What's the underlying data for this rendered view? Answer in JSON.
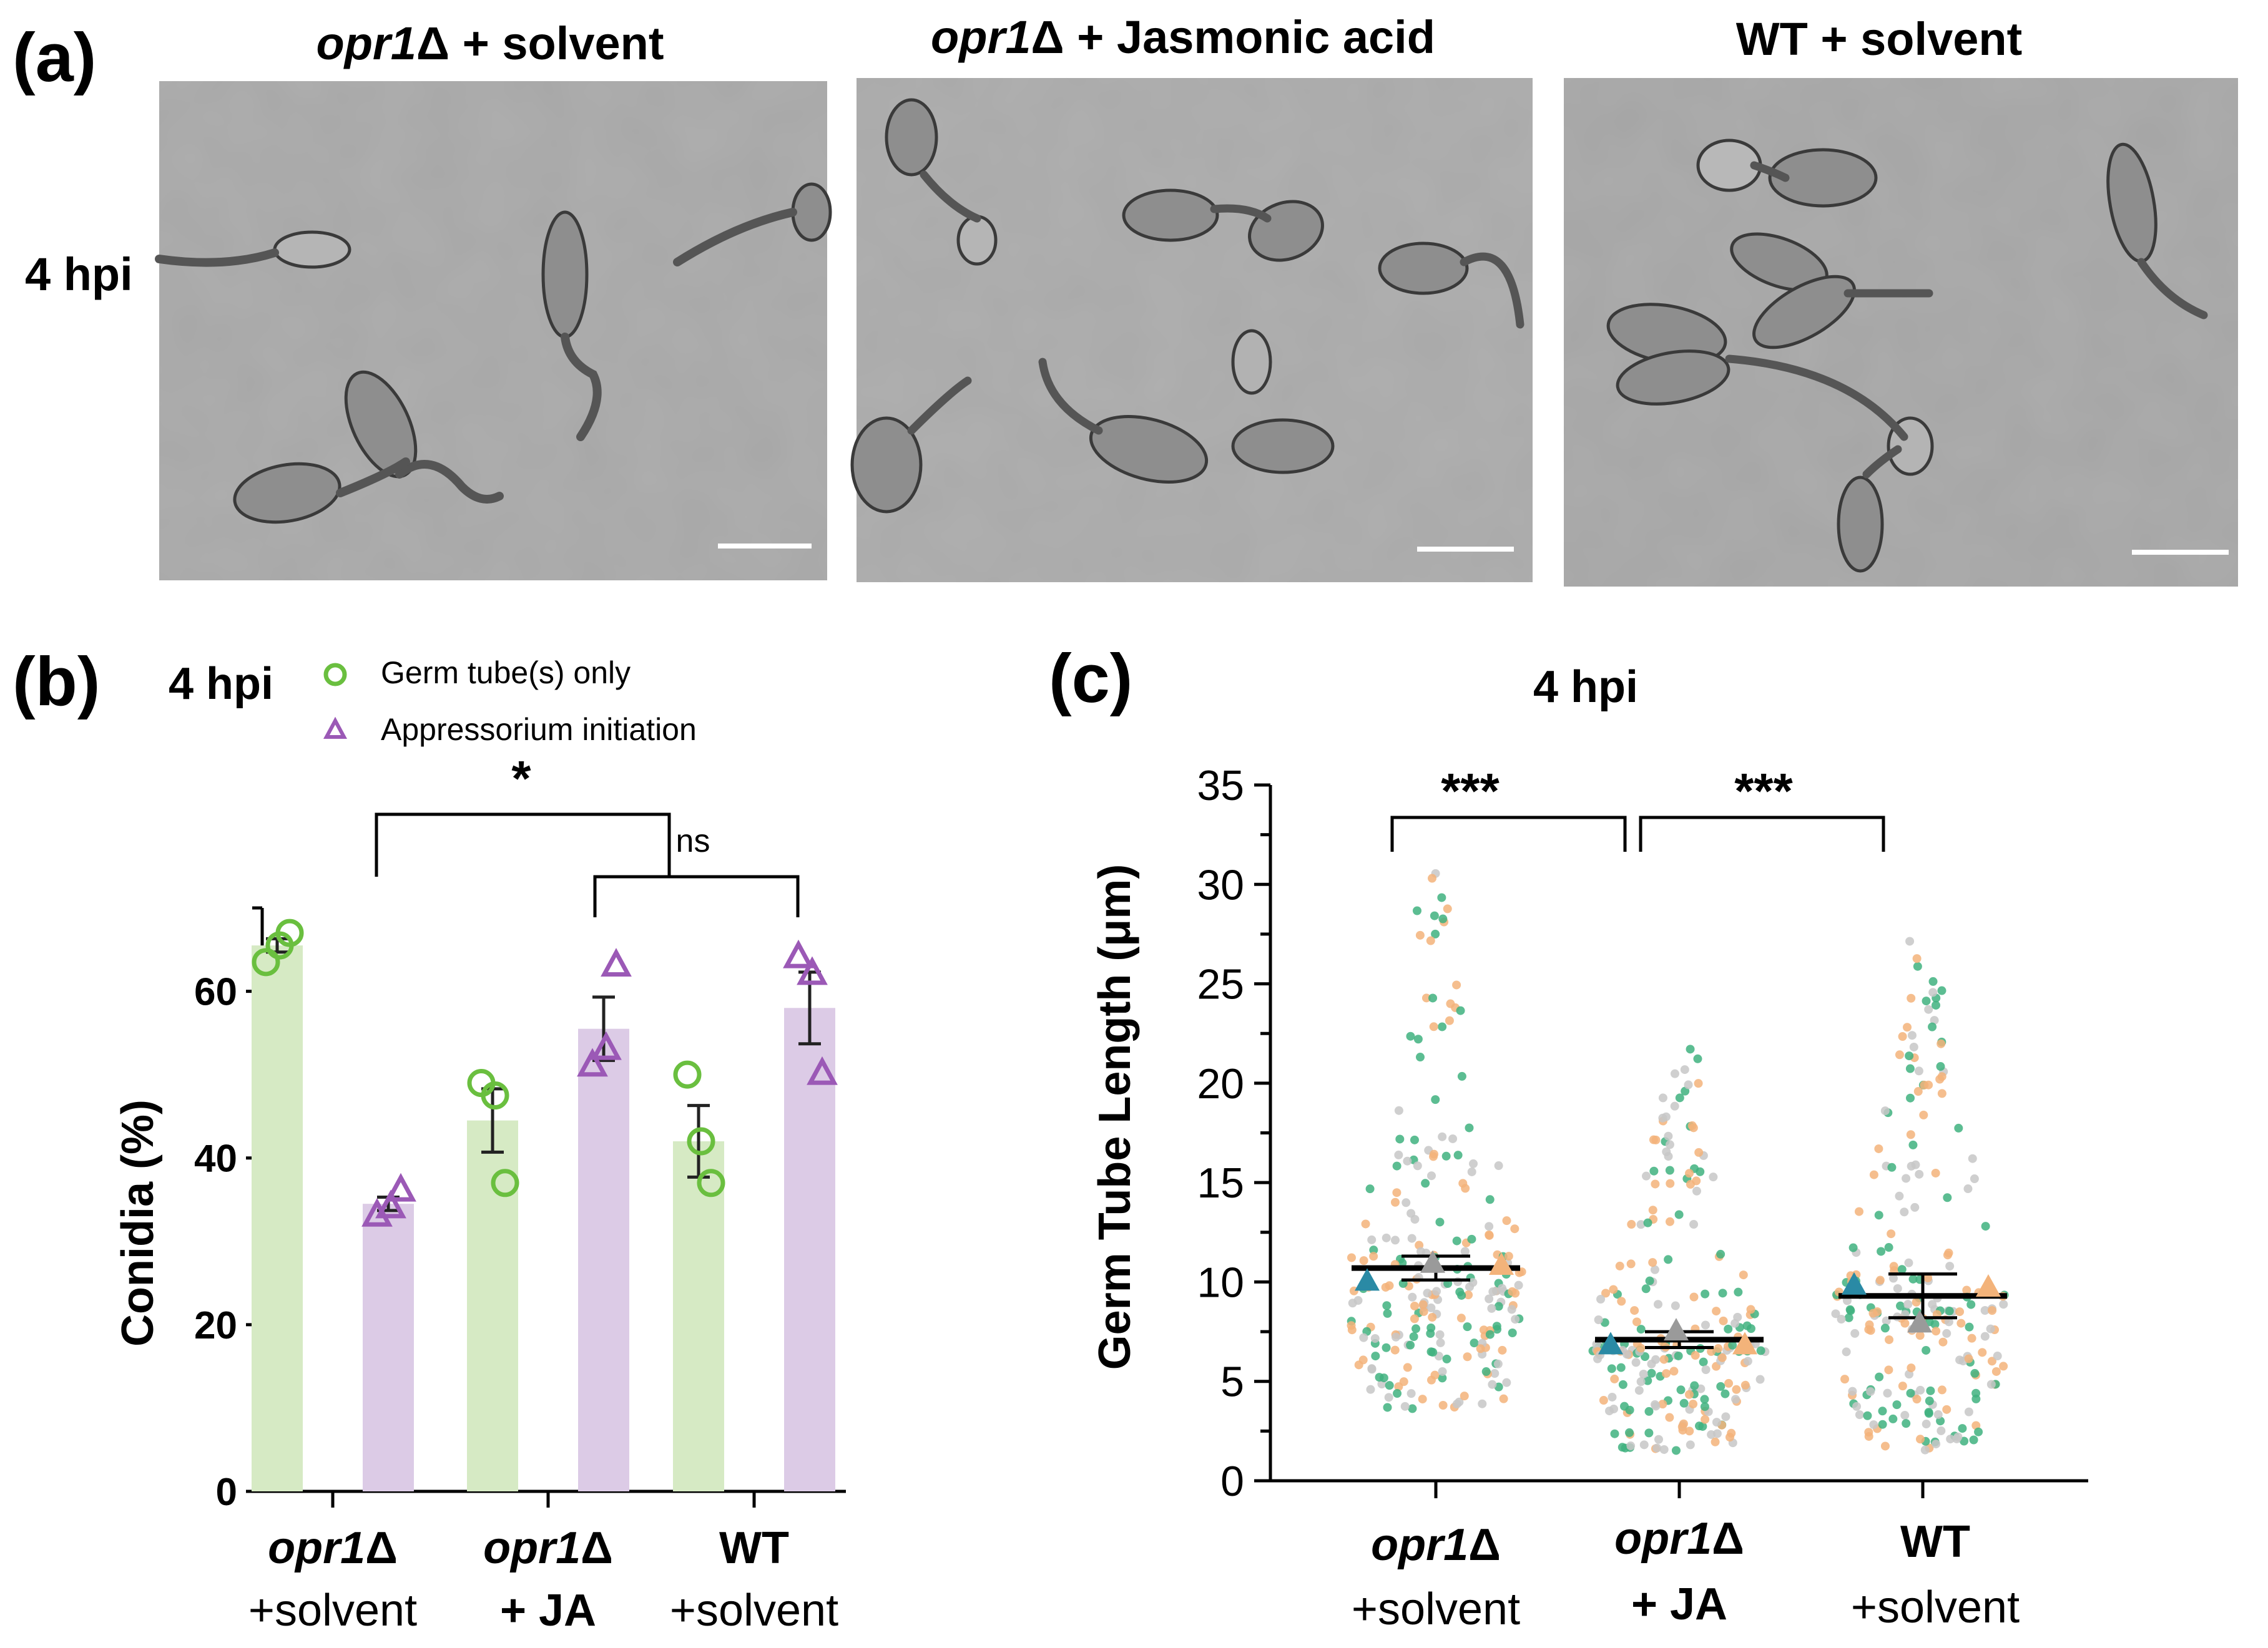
{
  "panel_a": {
    "label": "(a)",
    "row_label": "4 hpi",
    "images": [
      {
        "title_italic": "opr1",
        "title_rest": "Δ + solvent"
      },
      {
        "title_italic": "opr1",
        "title_rest": "Δ + Jasmonic acid"
      },
      {
        "title_italic": "",
        "title_rest": "WT + solvent"
      }
    ]
  },
  "panel_b": {
    "label": "(b)",
    "hpi": "4 hpi",
    "legend": {
      "germ": "Germ tube(s) only",
      "appr": "Appressorium initiation"
    },
    "sig_top": "*",
    "sig_ns": "ns",
    "ylabel": "Conidia (%)",
    "groups": [
      {
        "line1_italic": "opr1",
        "line1_rest": "Δ",
        "line2": "+solvent"
      },
      {
        "line1_italic": "opr1",
        "line1_rest": "Δ",
        "line2": "+ JA"
      },
      {
        "line1_italic": "",
        "line1_rest": "WT",
        "line2": "+solvent"
      }
    ]
  },
  "panel_c": {
    "label": "(c)",
    "title": "4 hpi",
    "ylabel": "Germ Tube Length (μm)",
    "sig1": "***",
    "sig2": "***",
    "groups": [
      {
        "line1_italic": "opr1",
        "line1_rest": "Δ",
        "line2": "+solvent"
      },
      {
        "line1_italic": "opr1",
        "line1_rest": "Δ",
        "line2": "+ JA"
      },
      {
        "line1_italic": "",
        "line1_rest": "WT",
        "line2": "+solvent"
      }
    ]
  },
  "colors": {
    "green": "#6abf3f",
    "purple": "#9b59b6",
    "green_bar": "#d6eac4",
    "purple_bar": "#dccbe6",
    "teal": "#2a8aa5",
    "orange": "#f3b37a",
    "gray": "#9a9a9a",
    "green_dot": "#3fb27f"
  },
  "chart_data": [
    {
      "type": "bar",
      "title": "4 hpi",
      "ylabel": "Conidia (%)",
      "ylim": [
        0,
        70
      ],
      "yticks": [
        0,
        20,
        40,
        60
      ],
      "categories": [
        "opr1Δ +solvent",
        "opr1Δ + JA",
        "WT +solvent"
      ],
      "series": [
        {
          "name": "Germ tube(s) only",
          "values": [
            65.5,
            44.5,
            42
          ],
          "sem": [
            0.8,
            3.8,
            4.3
          ],
          "points": [
            [
              63.5,
              65.5,
              67
            ],
            [
              49,
              47.5,
              37
            ],
            [
              50,
              42,
              37
            ]
          ]
        },
        {
          "name": "Appressorium initiation",
          "values": [
            34.5,
            55.5,
            58
          ],
          "sem": [
            0.8,
            3.8,
            4.3
          ],
          "points": [
            [
              33,
              34,
              36
            ],
            [
              51,
              53,
              63
            ],
            [
              64,
              62,
              50
            ]
          ]
        }
      ],
      "significance": [
        {
          "label": "*"
        },
        {
          "label": "ns"
        }
      ]
    },
    {
      "type": "scatter",
      "title": "4 hpi",
      "ylabel": "Germ Tube Length (μm)",
      "ylim": [
        0,
        35
      ],
      "yticks": [
        0,
        5,
        10,
        15,
        20,
        25,
        30,
        35
      ],
      "categories": [
        "opr1Δ +solvent",
        "opr1Δ + JA",
        "WT +solvent"
      ],
      "means": [
        10.7,
        7.1,
        9.3
      ],
      "sem": [
        0.6,
        0.4,
        1.1
      ],
      "replicate_means": [
        [
          10.0,
          10.9,
          10.8
        ],
        [
          6.8,
          7.5,
          6.8
        ],
        [
          9.8,
          7.9,
          9.7
        ]
      ],
      "spread": {
        "min": [
          3.5,
          1.5,
          1.5
        ],
        "max": [
          31,
          22,
          27.2
        ],
        "median": [
          9.5,
          6.5,
          8.5
        ]
      },
      "significance": [
        {
          "label": "***"
        },
        {
          "label": "***"
        }
      ]
    }
  ]
}
